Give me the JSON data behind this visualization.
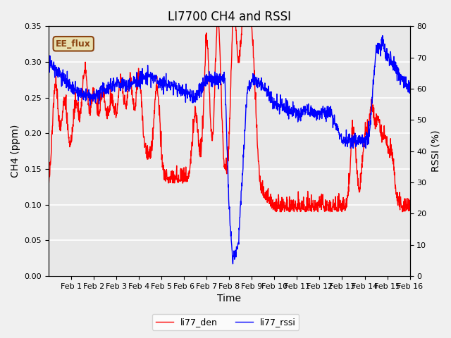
{
  "title": "LI7700 CH4 and RSSI",
  "xlabel": "Time",
  "ylabel_left": "CH4 (ppm)",
  "ylabel_right": "RSSI (%)",
  "legend_labels": [
    "li77_den",
    "li77_rssi"
  ],
  "annotation_text": "EE_flux",
  "annotation_color": "#8B4513",
  "annotation_bg": "#e8e0b0",
  "ylim_left": [
    0.0,
    0.35
  ],
  "ylim_right": [
    0,
    80
  ],
  "yticks_left": [
    0.0,
    0.05,
    0.1,
    0.15,
    0.2,
    0.25,
    0.3,
    0.35
  ],
  "yticks_right": [
    0,
    10,
    20,
    30,
    40,
    50,
    60,
    70,
    80
  ],
  "bg_color": "#f0f0f0",
  "plot_bg_color": "#e8e8e8",
  "grid_color": "white",
  "line_color_ch4": "red",
  "line_color_rssi": "blue",
  "line_width": 1.0,
  "tick_label_size": 8,
  "title_fontsize": 12,
  "axis_label_fontsize": 10,
  "n_days": 16,
  "xtick_positions": [
    1,
    2,
    3,
    4,
    5,
    6,
    7,
    8,
    9,
    10,
    11,
    12,
    13,
    14,
    15,
    16
  ],
  "xticklabels": [
    "Feb 1",
    "Feb 2",
    "Feb 3",
    "Feb 4",
    "Feb 5",
    "Feb 6",
    "Feb 7",
    "Feb 8",
    "Feb 9",
    "Feb 10",
    "Feb 11",
    "Feb 12",
    "Feb 13",
    "Feb 14",
    "Feb 15",
    "Feb 16"
  ]
}
